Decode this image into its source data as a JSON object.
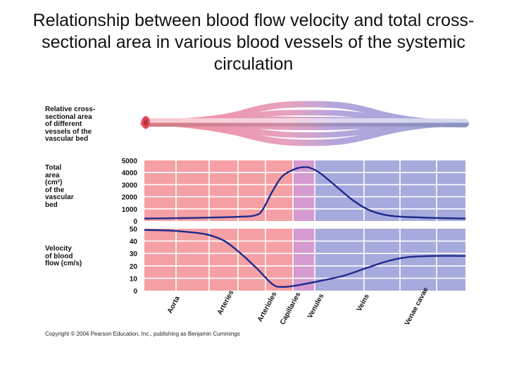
{
  "title": "Relationship between blood flow velocity and total cross-sectional area in various blood vessels of the systemic circulation",
  "labels": {
    "cross_section": "Relative cross-\nsectional area\nof different\nvessels of the\nvascular bed",
    "total_area": "Total\narea\n(cm²)\nof the\nvascular\nbed",
    "velocity": "Velocity\nof blood\nflow (cm/s)"
  },
  "copyright": "Copyright © 2004 Pearson Education, Inc., publishing as Benjamin Cummings",
  "colors": {
    "arterial": "#f4a0a4",
    "capillary": "#d49bd0",
    "venous": "#a7aadd",
    "curve": "#1e2a8c",
    "grid": "#ffffff"
  },
  "chart_data": {
    "type": "line",
    "categories": [
      "Aorta",
      "Arteries",
      "Arterioles",
      "Capillaries",
      "Venules",
      "Veins",
      "Venae cavae"
    ],
    "panels": [
      {
        "name": "total_area",
        "ylim": [
          0,
          5000
        ],
        "yticks": [
          "5000",
          "4000",
          "3000",
          "2000",
          "1000",
          "0"
        ],
        "x": [
          0,
          0.15,
          0.3,
          0.35,
          0.37,
          0.4,
          0.43,
          0.47,
          0.5,
          0.52,
          0.55,
          0.6,
          0.65,
          0.7,
          0.75,
          0.8,
          0.85,
          0.9,
          1
        ],
        "values": [
          200,
          250,
          350,
          500,
          1000,
          2500,
          3700,
          4300,
          4450,
          4350,
          3900,
          2800,
          1700,
          900,
          500,
          350,
          300,
          250,
          200
        ]
      },
      {
        "name": "velocity",
        "ylim": [
          0,
          50
        ],
        "yticks": [
          "50",
          "40",
          "30",
          "20",
          "10",
          "0"
        ],
        "x": [
          0,
          0.08,
          0.15,
          0.2,
          0.25,
          0.3,
          0.35,
          0.4,
          0.43,
          0.47,
          0.55,
          0.62,
          0.7,
          0.76,
          0.82,
          0.9,
          1
        ],
        "values": [
          49,
          48.5,
          47,
          45,
          40,
          30,
          18,
          5,
          3,
          4,
          8,
          12,
          19,
          24,
          27,
          28,
          28
        ]
      }
    ]
  }
}
